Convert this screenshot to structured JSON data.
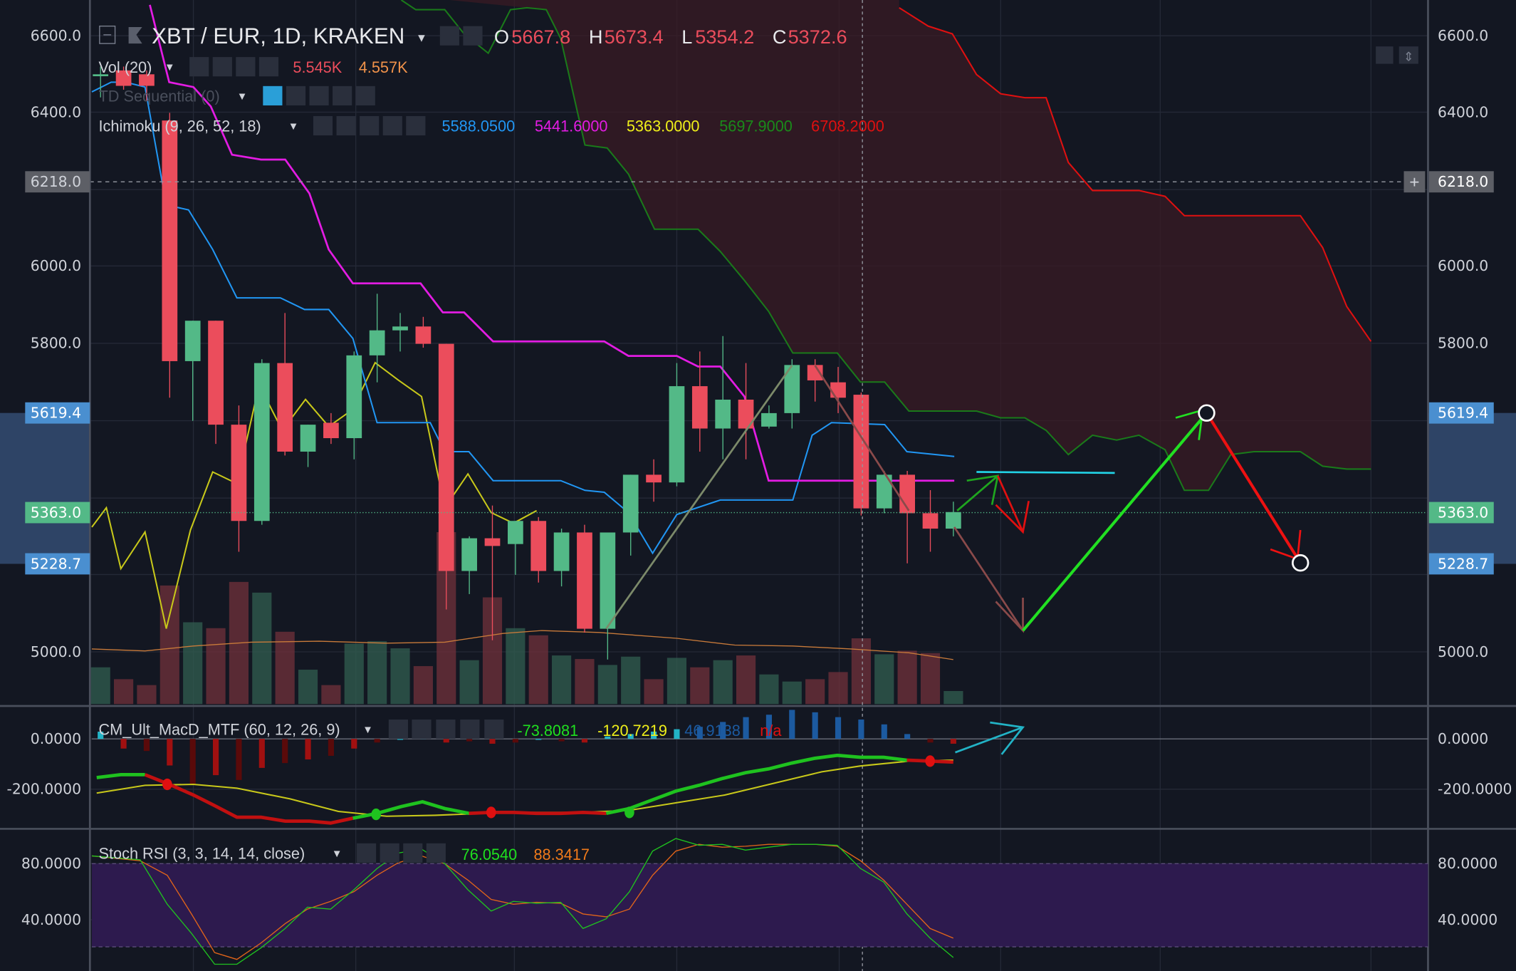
{
  "header": {
    "symbol": "XBT / EUR, 1D, KRAKEN",
    "o_label": "O",
    "o_value": "5667.8",
    "h_label": "H",
    "h_value": "5673.4",
    "l_label": "L",
    "l_value": "5354.2",
    "c_label": "C",
    "c_value": "5372.6"
  },
  "indicators": {
    "vol": {
      "label": "Vol (20)",
      "v1": "5.545K",
      "v2": "4.557K"
    },
    "td": {
      "label": "TD Sequential (0)"
    },
    "ichimoku": {
      "label": "Ichimoku (9, 26, 52, 18)",
      "v1": "5588.0500",
      "v2": "5441.6000",
      "v3": "5363.0000",
      "v4": "5697.9000",
      "v5": "6708.2000"
    },
    "macd": {
      "label": "CM_Ult_MacD_MTF (60, 12, 26, 9)",
      "v1": "-73.8081",
      "v2": "-120.7219",
      "v3": "46.9138",
      "v4": "n/a"
    },
    "stoch": {
      "label": "Stoch RSI (3, 3, 14, 14, close)",
      "v1": "76.0540",
      "v2": "88.3417"
    }
  },
  "price_axis": {
    "ticks": [
      "6600.0",
      "6400.0",
      "6000.0",
      "5800.0",
      "5000.0"
    ],
    "crosshair_price": "6218.0",
    "range_high": "5619.4",
    "last_price": "5363.0",
    "range_low": "5228.7"
  },
  "macd_axis": {
    "ticks": [
      "0.0000",
      "-200.0000"
    ]
  },
  "stoch_axis": {
    "ticks": [
      "80.0000",
      "40.0000"
    ]
  },
  "colors": {
    "up": "#53b987",
    "down": "#eb4d5c",
    "bg": "#131722",
    "tenkan": "#2196f3",
    "kijun": "#e31ce3",
    "chikou": "#c8c81a",
    "spanA": "#1a7a1a",
    "spanB": "#e01010"
  },
  "chart_data": {
    "type": "candlestick",
    "title": "XBT / EUR, 1D, KRAKEN",
    "ylim": [
      4850,
      6650
    ],
    "ohlc": [
      [
        6495,
        6520,
        6440,
        6500
      ],
      [
        6510,
        6520,
        6460,
        6470
      ],
      [
        6500,
        6510,
        6430,
        6470
      ],
      [
        6380,
        6400,
        5660,
        5755
      ],
      [
        5755,
        5860,
        5600,
        5860
      ],
      [
        5860,
        5860,
        5540,
        5590
      ],
      [
        5590,
        5640,
        5260,
        5340
      ],
      [
        5340,
        5760,
        5330,
        5750
      ],
      [
        5750,
        5880,
        5510,
        5520
      ],
      [
        5520,
        5590,
        5480,
        5590
      ],
      [
        5595,
        5620,
        5540,
        5555
      ],
      [
        5555,
        5780,
        5500,
        5770
      ],
      [
        5770,
        5930,
        5700,
        5835
      ],
      [
        5835,
        5880,
        5780,
        5845
      ],
      [
        5845,
        5870,
        5790,
        5800
      ],
      [
        5800,
        5800,
        5110,
        5210
      ],
      [
        5210,
        5300,
        5150,
        5295
      ],
      [
        5295,
        5380,
        5030,
        5275
      ],
      [
        5280,
        5340,
        5200,
        5340
      ],
      [
        5340,
        5350,
        5180,
        5210
      ],
      [
        5210,
        5320,
        5170,
        5310
      ],
      [
        5310,
        5330,
        5050,
        5060
      ],
      [
        5060,
        5310,
        4980,
        5310
      ],
      [
        5310,
        5460,
        5250,
        5460
      ],
      [
        5460,
        5500,
        5390,
        5440
      ],
      [
        5440,
        5750,
        5430,
        5690
      ],
      [
        5690,
        5780,
        5520,
        5580
      ],
      [
        5580,
        5820,
        5500,
        5655
      ],
      [
        5655,
        5750,
        5500,
        5580
      ],
      [
        5585,
        5640,
        5580,
        5620
      ],
      [
        5620,
        5760,
        5580,
        5745
      ],
      [
        5745,
        5760,
        5650,
        5705
      ],
      [
        5700,
        5740,
        5620,
        5660
      ],
      [
        5667.8,
        5673.4,
        5354.2,
        5372.6
      ],
      [
        5372.6,
        5470,
        5360,
        5460
      ],
      [
        5460,
        5470,
        5230,
        5360
      ],
      [
        5360,
        5420,
        5260,
        5320
      ],
      [
        5320,
        5390,
        5300,
        5363
      ]
    ],
    "volume_k": [
      3.1,
      2.1,
      1.6,
      10.0,
      6.9,
      6.4,
      10.3,
      9.4,
      6.1,
      2.9,
      1.6,
      5.1,
      5.3,
      4.7,
      3.2,
      14.5,
      3.7,
      9.0,
      6.4,
      5.8,
      4.1,
      3.8,
      3.3,
      4.0,
      2.1,
      3.9,
      3.1,
      3.7,
      4.1,
      2.5,
      1.9,
      2.1,
      2.7,
      5.545,
      4.2,
      4.5,
      4.3,
      1.1
    ]
  }
}
